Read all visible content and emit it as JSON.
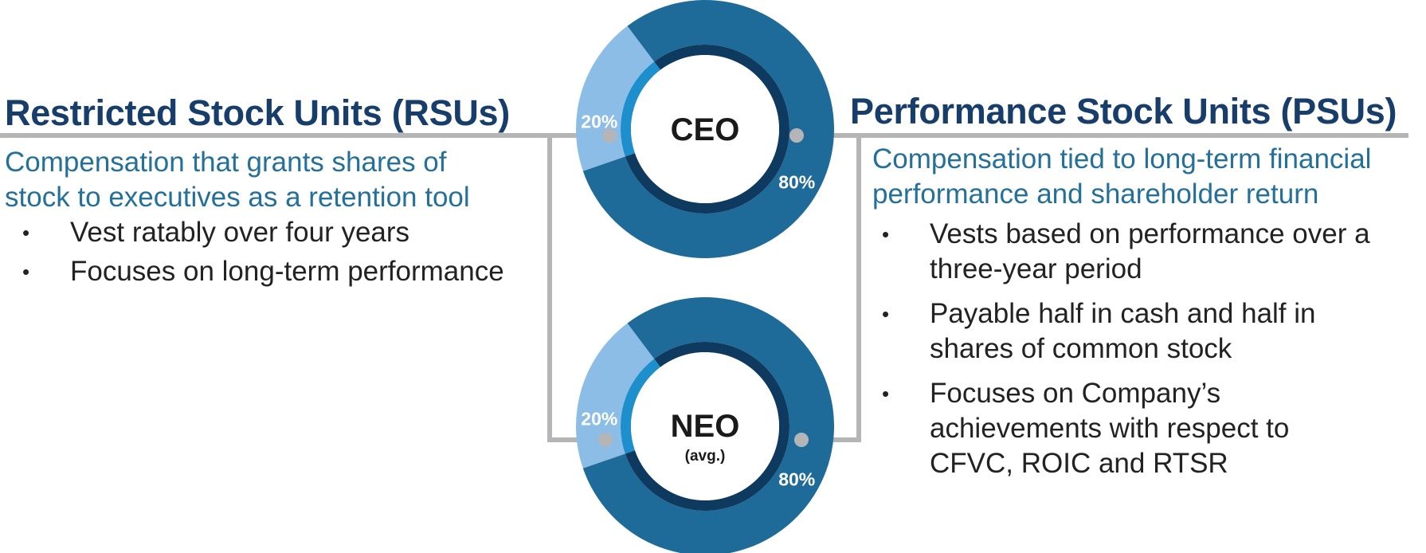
{
  "rsu": {
    "title": "Restricted Stock Units (RSUs)",
    "description": "Compensation that grants shares of stock to executives as a retention tool",
    "bullets": [
      "Vest ratably over four years",
      "Focuses on long-term performance"
    ]
  },
  "psu": {
    "title": "Performance Stock Units (PSUs)",
    "description": "Compensation tied to long-term financial performance and shareholder return",
    "bullets": [
      "Vests based on performance over a three-year period",
      "Payable half in cash and half in shares of common stock",
      "Focuses on Company’s achievements with respect to CFVC, ROIC and RTSR"
    ]
  },
  "chart_data": [
    {
      "type": "pie",
      "center_label": "CEO",
      "center_sublabel": "",
      "categories": [
        "Restricted Stock Units (RSUs)",
        "Performance Stock Units (PSUs)"
      ],
      "values": [
        20,
        80
      ],
      "value_labels": [
        "20%",
        "80%"
      ]
    },
    {
      "type": "pie",
      "center_label": "NEO",
      "center_sublabel": "(avg.)",
      "categories": [
        "Restricted Stock Units (RSUs)",
        "Performance Stock Units (PSUs)"
      ],
      "values": [
        20,
        80
      ],
      "value_labels": [
        "20%",
        "80%"
      ]
    }
  ],
  "colors": {
    "psu_outer": "#1e6b9a",
    "psu_inner": "#0e3a60",
    "rsu_outer": "#8bbde6",
    "rsu_inner": "#1c8fcc",
    "connector": "#b5b5b8",
    "title": "#173d6b",
    "description": "#23709a",
    "body_text": "#222222"
  }
}
